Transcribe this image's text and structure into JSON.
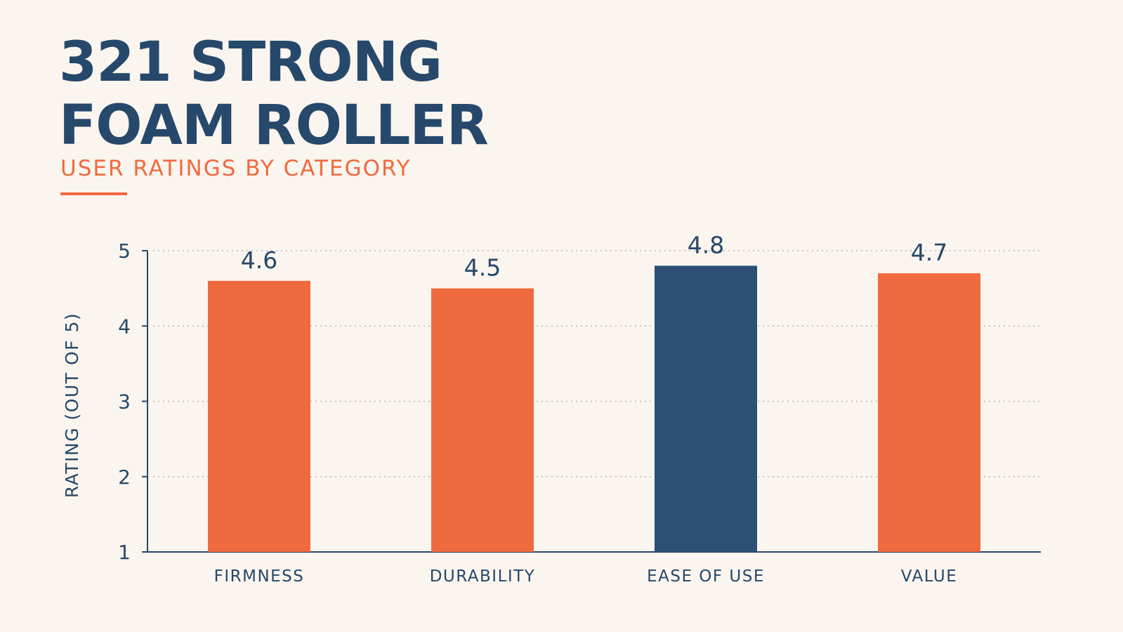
{
  "header": {
    "title_line1": "321 STRONG",
    "title_line2": "FOAM ROLLER",
    "subtitle": "USER RATINGS BY CATEGORY"
  },
  "colors": {
    "background": "#faf5ee",
    "primary": "#26486b",
    "accent": "#f06a40",
    "highlight_bar": "#2b5074",
    "grid": "#b8b8b0"
  },
  "chart_data": {
    "type": "bar",
    "title": "321 STRONG FOAM ROLLER",
    "subtitle": "USER RATINGS BY CATEGORY",
    "categories": [
      "FIRMNESS",
      "DURABILITY",
      "EASE OF USE",
      "VALUE"
    ],
    "values": [
      4.6,
      4.5,
      4.8,
      4.7
    ],
    "value_labels": [
      "4.6",
      "4.5",
      "4.8",
      "4.7"
    ],
    "highlighted_category": "EASE OF USE",
    "xlabel": "",
    "ylabel": "RATING (OUT OF 5)",
    "ylim": [
      1,
      5
    ],
    "yticks": [
      1,
      2,
      3,
      4,
      5
    ],
    "grid": true,
    "legend": "none"
  }
}
